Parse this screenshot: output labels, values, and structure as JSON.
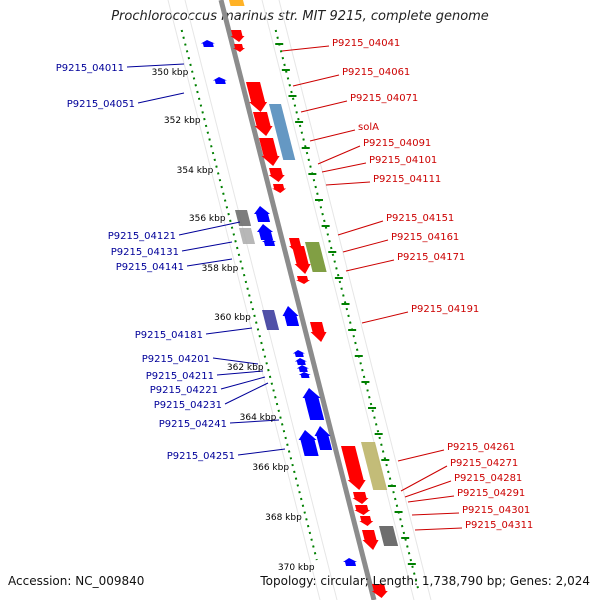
{
  "title": "Prochlorococcus marinus str. MIT 9215, complete genome",
  "footer": {
    "accession": "Accession: NC_009840",
    "summary": "Topology: circular; Length: 1,738,790 bp; Genes: 2,024"
  },
  "colors": {
    "backbone": "#8c8c8c",
    "forward_gene": "#ff0000",
    "reverse_gene": "#0000ff",
    "forward_label": "#cc0000",
    "reverse_label": "#000099",
    "ruler_tick": "#008000",
    "ruler_label": "#000000"
  },
  "ruler_labels": [
    "350 kbp",
    "352 kbp",
    "354 kbp",
    "356 kbp",
    "358 kbp",
    "360 kbp",
    "362 kbp",
    "364 kbp",
    "366 kbp",
    "368 kbp",
    "370 kbp"
  ],
  "forward_gene_labels": [
    "P9215_04041",
    "P9215_04061",
    "P9215_04071",
    "solA",
    "P9215_04091",
    "P9215_04101",
    "P9215_04111",
    "P9215_04151",
    "P9215_04161",
    "P9215_04171",
    "P9215_04191",
    "P9215_04261",
    "P9215_04271",
    "P9215_04281",
    "P9215_04291",
    "P9215_04301",
    "P9215_04311"
  ],
  "reverse_gene_labels": [
    "P9215_04011",
    "P9215_04051",
    "P9215_04121",
    "P9215_04131",
    "P9215_04141",
    "P9215_04181",
    "P9215_04201",
    "P9215_04211",
    "P9215_04221",
    "P9215_04231",
    "P9215_04241",
    "P9215_04251"
  ]
}
